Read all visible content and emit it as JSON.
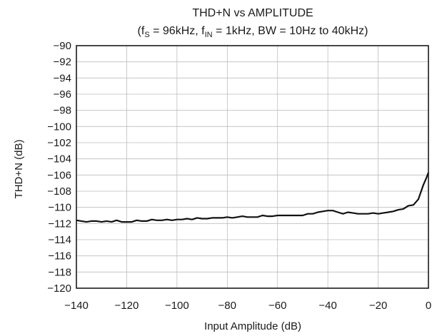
{
  "chart_data": {
    "type": "line",
    "title": "THD+N vs AMPLITUDE",
    "subtitle": {
      "open": "(f",
      "fs_sub": "S",
      "mid1": " = 96kHz, f",
      "fin_sub": "IN",
      "rest": " = 1kHz, BW = 10Hz to 40kHz)"
    },
    "xlabel": "Input Amplitude (dB)",
    "ylabel": "THD+N (dB)",
    "xlim": [
      -140,
      0
    ],
    "ylim": [
      -120,
      -90
    ],
    "xticks": [
      -140,
      -120,
      -100,
      -80,
      -60,
      -40,
      -20,
      0
    ],
    "yticks": [
      -90,
      -92,
      -94,
      -96,
      -98,
      -100,
      -102,
      -104,
      -106,
      -108,
      -110,
      -112,
      -114,
      -116,
      -118,
      -120
    ],
    "grid": true,
    "series": [
      {
        "color": "#111111",
        "x": [
          -140,
          -138,
          -136,
          -134,
          -132,
          -130,
          -128,
          -126,
          -124,
          -122,
          -120,
          -118,
          -116,
          -114,
          -112,
          -110,
          -108,
          -106,
          -104,
          -102,
          -100,
          -98,
          -96,
          -94,
          -92,
          -90,
          -88,
          -86,
          -84,
          -82,
          -80,
          -78,
          -76,
          -74,
          -72,
          -70,
          -68,
          -66,
          -64,
          -62,
          -60,
          -58,
          -56,
          -54,
          -52,
          -50,
          -48,
          -46,
          -44,
          -42,
          -40,
          -38,
          -36,
          -34,
          -32,
          -30,
          -28,
          -26,
          -24,
          -22,
          -20,
          -18,
          -16,
          -14,
          -12,
          -10,
          -8,
          -6,
          -4,
          -2,
          -1,
          0
        ],
        "y": [
          -111.6,
          -111.7,
          -111.8,
          -111.7,
          -111.7,
          -111.8,
          -111.7,
          -111.8,
          -111.6,
          -111.8,
          -111.8,
          -111.8,
          -111.6,
          -111.7,
          -111.7,
          -111.5,
          -111.6,
          -111.6,
          -111.5,
          -111.6,
          -111.5,
          -111.5,
          -111.4,
          -111.5,
          -111.3,
          -111.4,
          -111.4,
          -111.3,
          -111.3,
          -111.3,
          -111.2,
          -111.3,
          -111.2,
          -111.1,
          -111.2,
          -111.2,
          -111.2,
          -111.0,
          -111.1,
          -111.1,
          -111.0,
          -111.0,
          -111.0,
          -111.0,
          -111.0,
          -111.0,
          -110.8,
          -110.8,
          -110.6,
          -110.5,
          -110.4,
          -110.4,
          -110.6,
          -110.8,
          -110.6,
          -110.7,
          -110.8,
          -110.8,
          -110.8,
          -110.7,
          -110.8,
          -110.7,
          -110.6,
          -110.5,
          -110.3,
          -110.2,
          -109.8,
          -109.7,
          -109.0,
          -107.2,
          -106.5,
          -105.7
        ]
      }
    ]
  }
}
